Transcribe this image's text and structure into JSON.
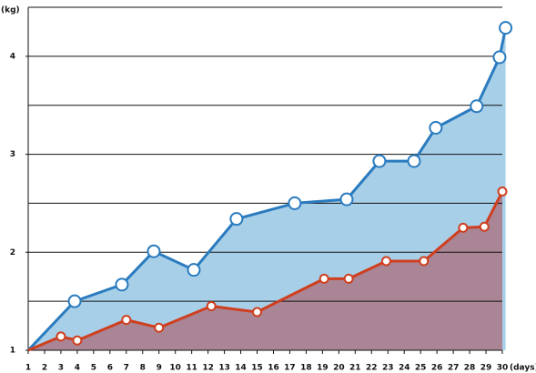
{
  "chart_data": {
    "type": "area",
    "ylabel": "(kg)",
    "xlabel": "(days)",
    "xlim": [
      1,
      30
    ],
    "xticks": [
      1,
      2,
      3,
      4,
      5,
      6,
      7,
      8,
      9,
      10,
      11,
      12,
      13,
      14,
      15,
      16,
      17,
      18,
      19,
      20,
      21,
      22,
      23,
      24,
      25,
      26,
      27,
      28,
      29,
      30
    ],
    "ylim": [
      1,
      4.5
    ],
    "yticks": [
      1,
      2,
      3,
      4
    ],
    "minor_yticks": [
      1.5,
      2.5,
      3.5,
      4.5
    ],
    "grid": true,
    "series": [
      {
        "color": "#2a7bbf",
        "fill": "#a8cfe8",
        "x": [
          1,
          3.84,
          6.73,
          8.68,
          11.13,
          13.74,
          17.3,
          20.48,
          22.48,
          24.6,
          25.93,
          28.43,
          29.83,
          30.2
        ],
        "values": [
          1,
          1.5,
          1.67,
          2.01,
          1.82,
          2.34,
          2.5,
          2.54,
          2.93,
          2.93,
          3.27,
          3.49,
          3.99,
          4.29
        ]
      },
      {
        "color": "#cf3f1f",
        "fill": "#aa8595",
        "x": [
          1,
          3,
          4,
          7,
          9,
          12.2,
          15,
          19.1,
          20.6,
          22.9,
          25.2,
          27.6,
          28.9,
          30
        ],
        "values": [
          1,
          1.14,
          1.1,
          1.31,
          1.23,
          1.45,
          1.39,
          1.73,
          1.73,
          1.91,
          1.91,
          2.25,
          2.26,
          2.62
        ]
      }
    ]
  }
}
